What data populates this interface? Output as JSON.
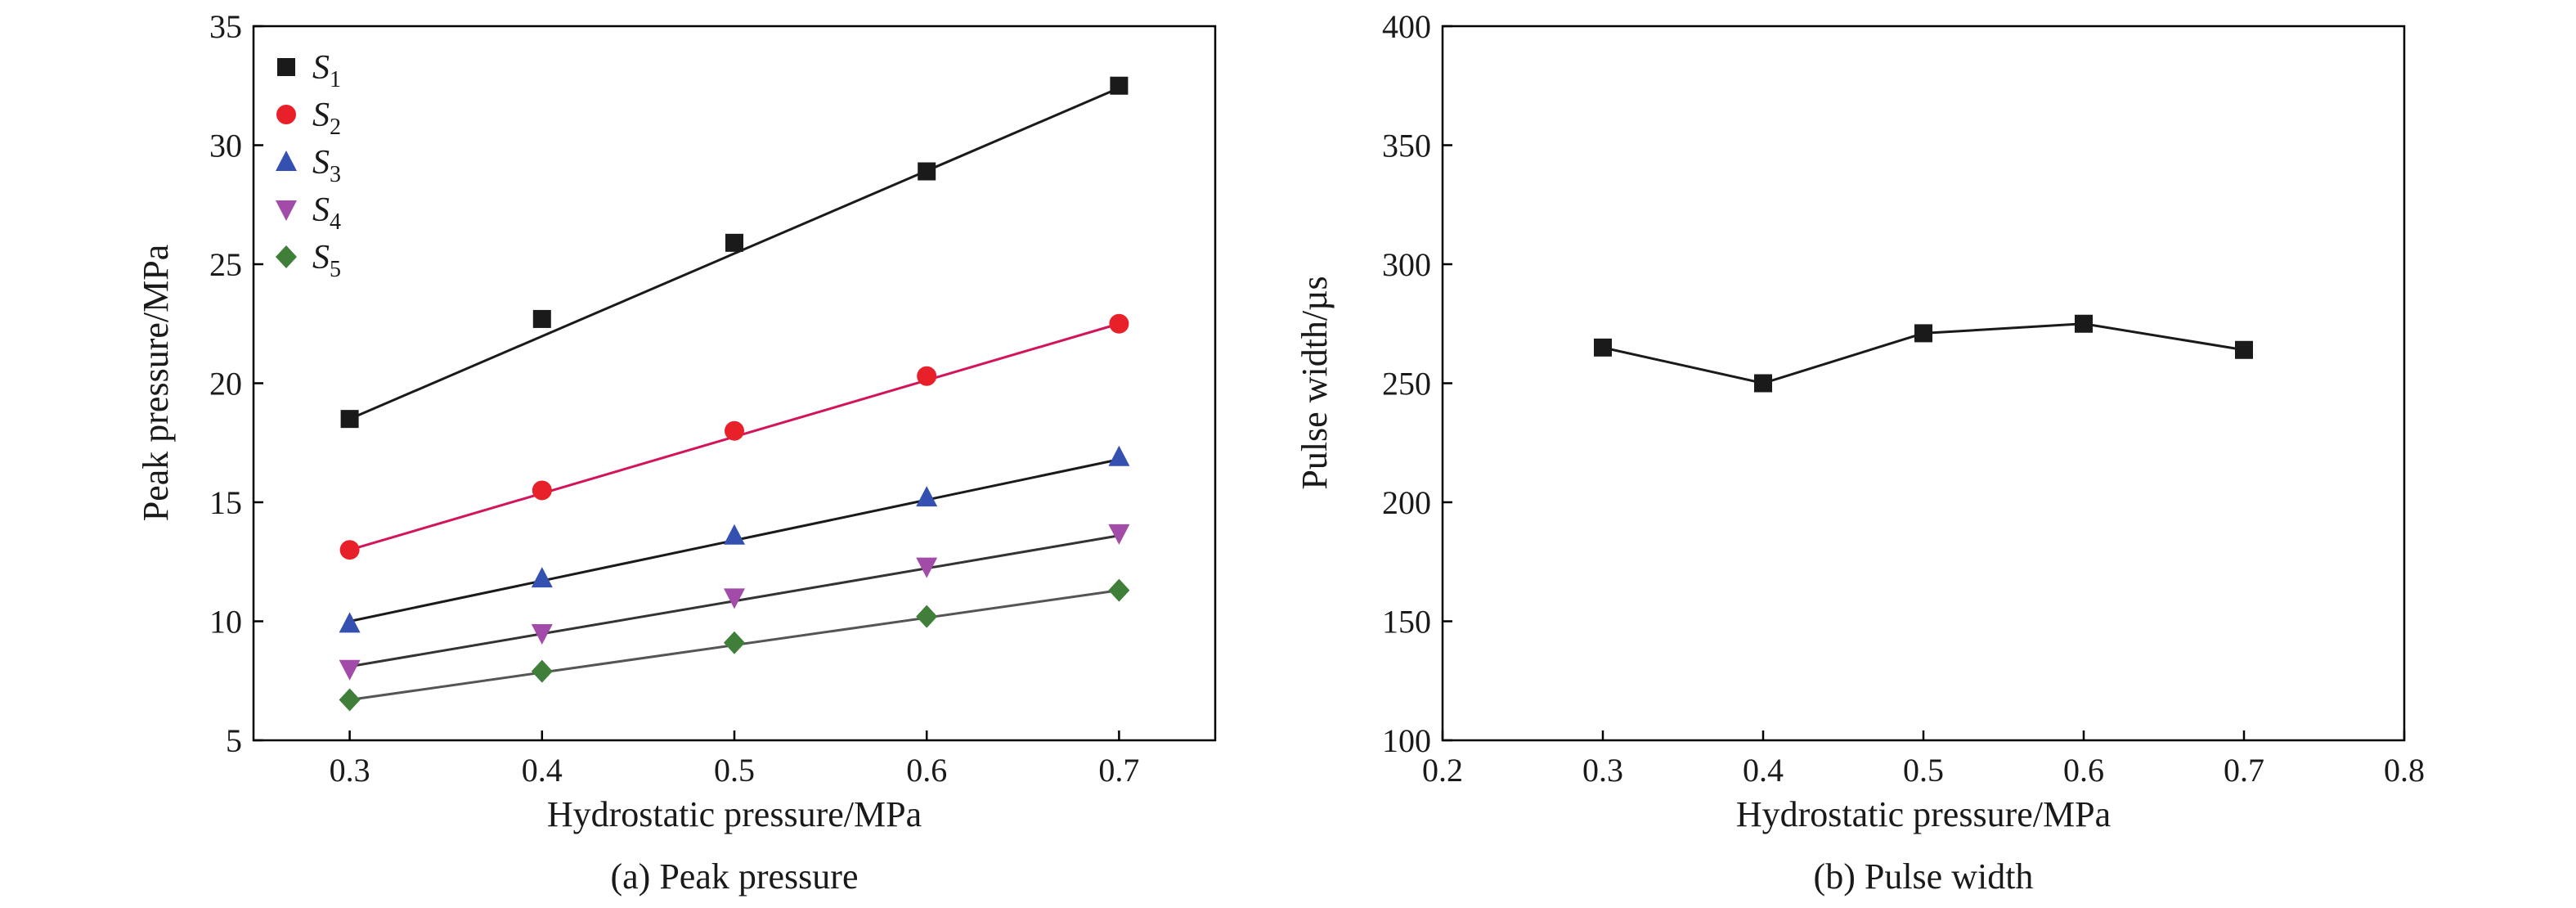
{
  "chart_data": [
    {
      "type": "line",
      "title": "",
      "caption": "(a) Peak pressure",
      "xlabel": "Hydrostatic pressure/MPa",
      "ylabel": "Peak pressure/MPa",
      "xlim": [
        0.25,
        0.75
      ],
      "ylim": [
        5,
        35
      ],
      "xticks": [
        0.3,
        0.4,
        0.5,
        0.6,
        0.7
      ],
      "yticks": [
        5,
        10,
        15,
        20,
        25,
        30,
        35
      ],
      "xtick_labels": [
        "0.3",
        "0.4",
        "0.5",
        "0.6",
        "0.7"
      ],
      "ytick_labels": [
        "5",
        "10",
        "15",
        "20",
        "25",
        "30",
        "35"
      ],
      "legend_position": "top-left",
      "x": [
        0.3,
        0.4,
        0.5,
        0.6,
        0.7
      ],
      "series": [
        {
          "name": "S",
          "sub": "1",
          "values": [
            18.5,
            22.7,
            25.9,
            28.9,
            32.5
          ],
          "fit": [
            18.5,
            32.4
          ],
          "color": "#1a1a1a",
          "line_color": "#1a1a1a",
          "marker": "square"
        },
        {
          "name": "S",
          "sub": "2",
          "values": [
            13.0,
            15.5,
            18.0,
            20.3,
            22.5
          ],
          "fit": [
            13.0,
            22.5
          ],
          "color": "#e8202a",
          "line_color": "#d4145a",
          "marker": "circle"
        },
        {
          "name": "S",
          "sub": "3",
          "values": [
            9.9,
            11.8,
            13.6,
            15.2,
            16.9
          ],
          "fit": [
            10.0,
            16.8
          ],
          "color": "#3450b0",
          "line_color": "#1a1a1a",
          "marker": "triangle-up"
        },
        {
          "name": "S",
          "sub": "4",
          "values": [
            8.0,
            9.5,
            11.0,
            12.3,
            13.7
          ],
          "fit": [
            8.1,
            13.6
          ],
          "color": "#a24ba8",
          "line_color": "#333333",
          "marker": "triangle-down"
        },
        {
          "name": "S",
          "sub": "5",
          "values": [
            6.7,
            7.9,
            9.1,
            10.2,
            11.3
          ],
          "fit": [
            6.7,
            11.3
          ],
          "color": "#3f7f3a",
          "line_color": "#555555",
          "marker": "diamond"
        }
      ]
    },
    {
      "type": "line",
      "title": "",
      "caption": "(b) Pulse width",
      "xlabel": "Hydrostatic pressure/MPa",
      "ylabel": "Pulse width/µs",
      "xlim": [
        0.2,
        0.8
      ],
      "ylim": [
        100,
        400
      ],
      "xticks": [
        0.2,
        0.3,
        0.4,
        0.5,
        0.6,
        0.7,
        0.8
      ],
      "yticks": [
        100,
        150,
        200,
        250,
        300,
        350,
        400
      ],
      "xtick_labels": [
        "0.2",
        "0.3",
        "0.4",
        "0.5",
        "0.6",
        "0.7",
        "0.8"
      ],
      "ytick_labels": [
        "100",
        "150",
        "200",
        "250",
        "300",
        "350",
        "400"
      ],
      "x": [
        0.3,
        0.4,
        0.5,
        0.6,
        0.7
      ],
      "series": [
        {
          "name": "Pulse width",
          "values": [
            265,
            250,
            271,
            275,
            264
          ],
          "color": "#1a1a1a",
          "line_color": "#1a1a1a",
          "marker": "square"
        }
      ]
    }
  ]
}
